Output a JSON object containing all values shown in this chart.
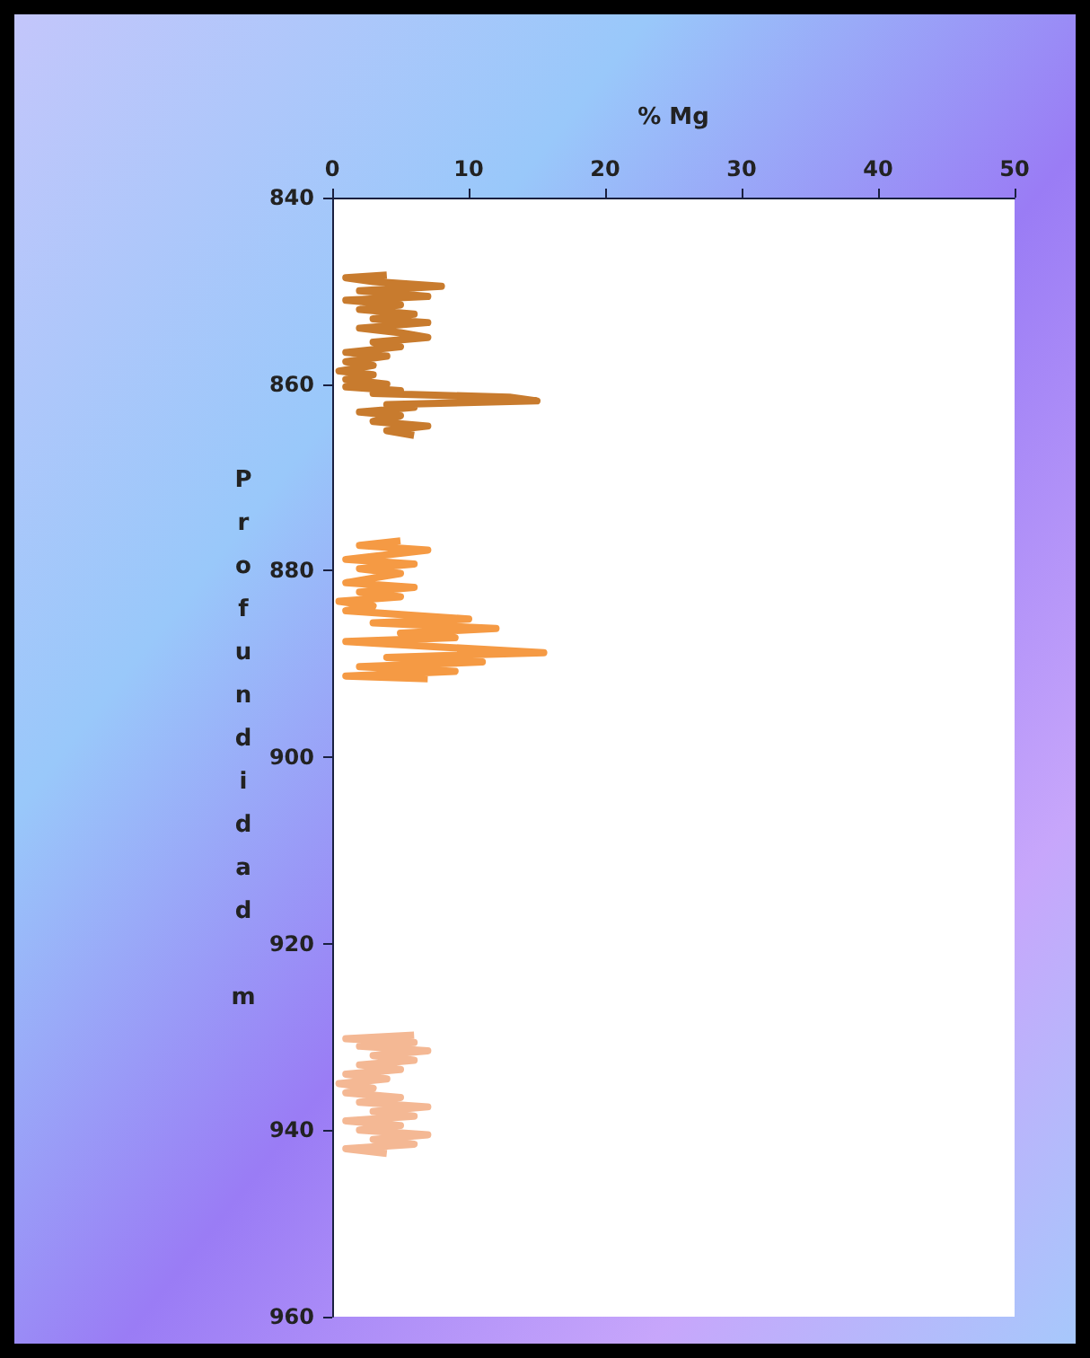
{
  "chart_data": {
    "type": "line",
    "xlabel": "% Mg",
    "ylabel": "Profundidad m",
    "xlim": [
      0,
      50
    ],
    "xticks": [
      0,
      10,
      20,
      30,
      40,
      50
    ],
    "ylim": [
      960,
      840
    ],
    "yticks": [
      840,
      860,
      880,
      900,
      920,
      940,
      960
    ],
    "marker": "none",
    "series": [
      {
        "color": "#c87b2e",
        "x": [
          4,
          1,
          3,
          8,
          2,
          7,
          1,
          5,
          2,
          6,
          3,
          7,
          2,
          5,
          7,
          3,
          5,
          1,
          4,
          1,
          3,
          0.5,
          3,
          1,
          4,
          1,
          5,
          3,
          13,
          15,
          4,
          6,
          2,
          5,
          3,
          7,
          4,
          6
        ],
        "values": [
          848.3,
          848.6,
          849,
          849.5,
          850,
          850.6,
          851,
          851.5,
          852,
          852.5,
          853,
          853.4,
          854,
          854.5,
          855,
          855.5,
          856,
          856.6,
          857,
          857.6,
          858,
          858.6,
          859,
          859.5,
          860,
          860.3,
          860.7,
          861,
          861.4,
          861.8,
          862.2,
          862.5,
          863,
          863.4,
          864,
          864.5,
          865,
          865.5
        ]
      },
      {
        "color": "#f59a44",
        "x": [
          5,
          2,
          7,
          4,
          1,
          6,
          2,
          5,
          3,
          1,
          6,
          2,
          5,
          0.5,
          3,
          1,
          6,
          10,
          3,
          12,
          5,
          9,
          1,
          8,
          15.5,
          4,
          11,
          2,
          9,
          1,
          7
        ],
        "values": [
          876.8,
          877.3,
          877.8,
          878.3,
          878.8,
          879.3,
          879.8,
          880.3,
          880.8,
          881.3,
          881.8,
          882.3,
          882.8,
          883.3,
          883.8,
          884.3,
          884.8,
          885.2,
          885.6,
          886.2,
          886.7,
          887.2,
          887.6,
          888.2,
          888.8,
          889.3,
          889.8,
          890.3,
          890.8,
          891.3,
          891.6
        ]
      },
      {
        "color": "#f4b894",
        "x": [
          6,
          1,
          6,
          2,
          7,
          3,
          6,
          2,
          5,
          1,
          4,
          0.5,
          3,
          1,
          5,
          2,
          7,
          3,
          6,
          1,
          5,
          2,
          7,
          3,
          6,
          1,
          4
        ],
        "values": [
          929.8,
          930.2,
          930.6,
          931,
          931.5,
          932,
          932.5,
          933,
          933.5,
          934,
          934.5,
          935,
          935.5,
          936,
          936.5,
          937,
          937.5,
          938,
          938.5,
          939,
          939.5,
          940,
          940.5,
          941,
          941.5,
          942,
          942.5
        ]
      }
    ]
  }
}
